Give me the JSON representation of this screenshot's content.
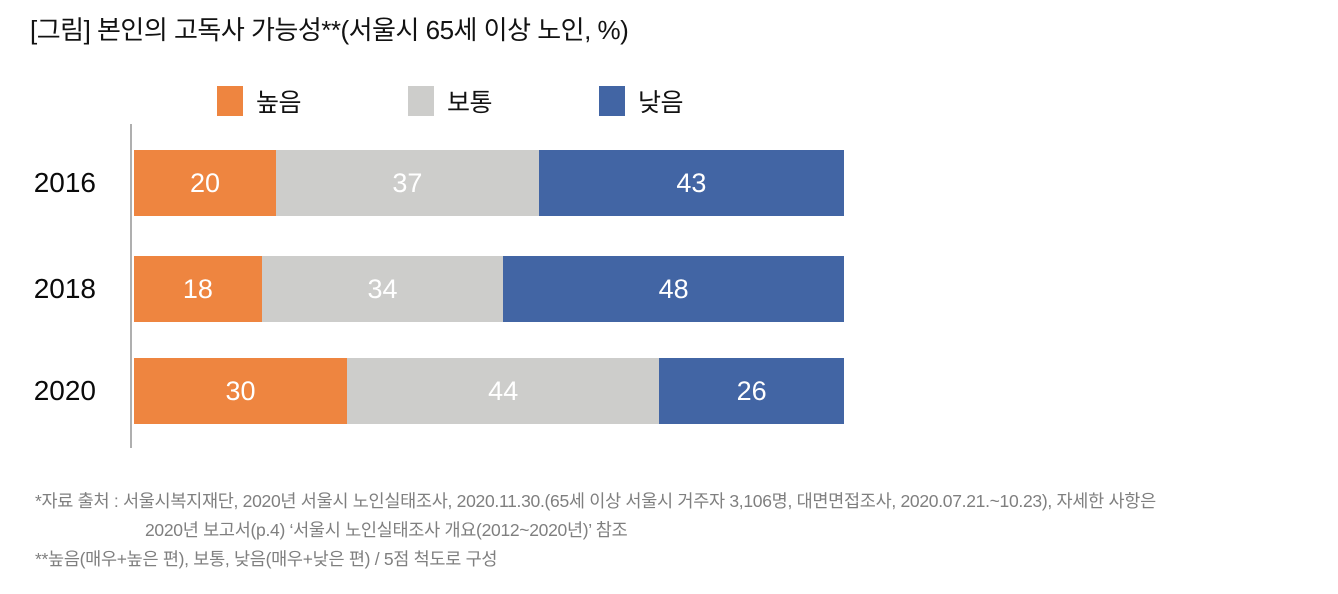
{
  "title": "[그림] 본인의 고독사 가능성**(서울시 65세 이상 노인, %)",
  "legend": {
    "items": [
      {
        "key": "high",
        "label": "높음",
        "color": "#EE8540"
      },
      {
        "key": "medium",
        "label": "보통",
        "color": "#CDCDCB"
      },
      {
        "key": "low",
        "label": "낮음",
        "color": "#4265A4"
      }
    ]
  },
  "chart_data": {
    "type": "bar",
    "orientation": "horizontal",
    "stacked": true,
    "unit": "%",
    "title": "[그림] 본인의 고독사 가능성**(서울시 65세 이상 노인, %)",
    "categories": [
      "2016",
      "2018",
      "2020"
    ],
    "series": [
      {
        "name": "높음",
        "color": "#EE8540",
        "values": [
          20,
          18,
          30
        ]
      },
      {
        "name": "보통",
        "color": "#CDCDCB",
        "values": [
          37,
          34,
          44
        ]
      },
      {
        "name": "낮음",
        "color": "#4265A4",
        "values": [
          43,
          48,
          26
        ]
      }
    ],
    "xlim": [
      0,
      100
    ],
    "grid": false,
    "legend_position": "top",
    "value_labels": "inside-white"
  },
  "footnotes": {
    "lines": [
      {
        "text": "*자료 출처 : 서울시복지재단, 2020년 서울시 노인실태조사, 2020.11.30.(65세 이상 서울시 거주자 3,106명, 대면면접조사, 2020.07.21.~10.23), 자세한 사항은",
        "indent": false
      },
      {
        "text": "2020년 보고서(p.4) ‘서울시 노인실태조사 개요(2012~2020년)’ 참조",
        "indent": true
      },
      {
        "text": "**높음(매우+높은 편), 보통, 낮음(매우+낮은 편) / 5점 척도로 구성",
        "indent": false
      }
    ]
  },
  "colors": {
    "axis_line": "#AFAFAF",
    "title_text": "#121212",
    "year_label_text": "#0A0A0A",
    "value_label_text": "#FFFFFF",
    "footnote_text": "#7F7F7F",
    "background": "#FFFFFF"
  }
}
